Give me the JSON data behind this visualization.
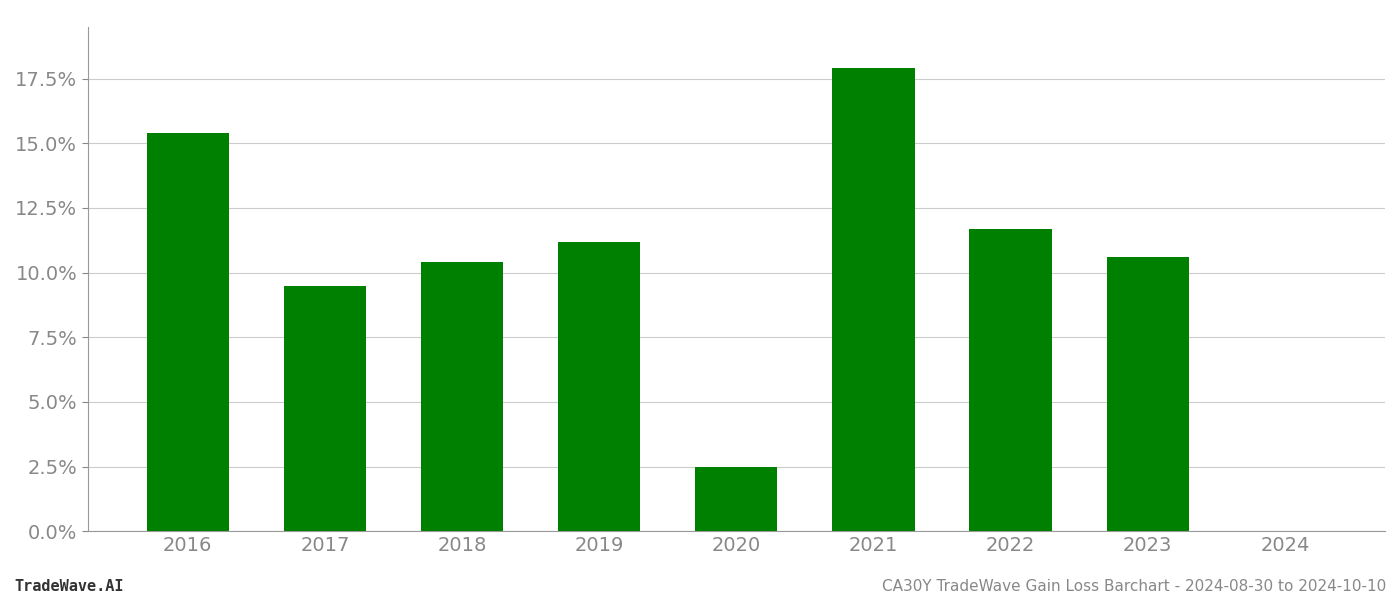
{
  "categories": [
    "2016",
    "2017",
    "2018",
    "2019",
    "2020",
    "2021",
    "2022",
    "2023",
    "2024"
  ],
  "values": [
    0.154,
    0.095,
    0.104,
    0.112,
    0.025,
    0.179,
    0.117,
    0.106,
    0.0
  ],
  "bar_color": "#008000",
  "background_color": "#ffffff",
  "ylabel_ticks": [
    0.0,
    0.025,
    0.05,
    0.075,
    0.1,
    0.125,
    0.15,
    0.175
  ],
  "ylim": [
    0,
    0.195
  ],
  "grid_color": "#cccccc",
  "footer_left": "TradeWave.AI",
  "footer_right": "CA30Y TradeWave Gain Loss Barchart - 2024-08-30 to 2024-10-10",
  "footer_fontsize": 11,
  "tick_fontsize": 14,
  "bar_width": 0.6
}
